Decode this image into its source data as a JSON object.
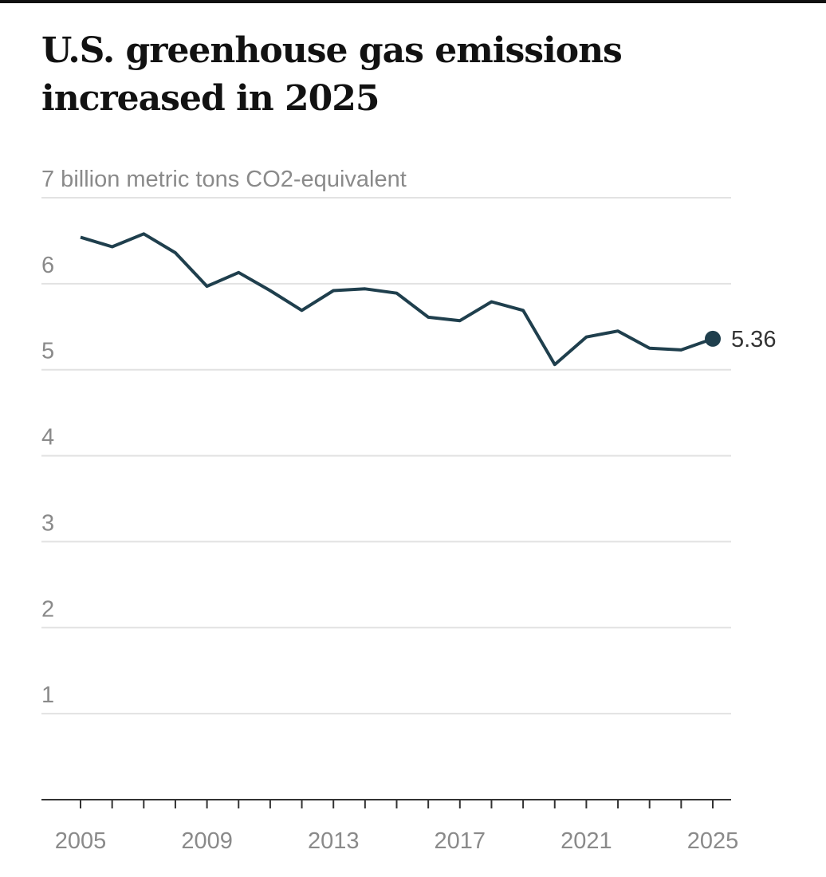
{
  "title": "U.S. greenhouse gas emissions increased in 2025",
  "chart_data": {
    "type": "line",
    "title": "U.S. greenhouse gas emissions increased in 2025",
    "ylabel": "billion metric tons CO2-equivalent",
    "top_tick_label": "7 billion metric tons CO2-equivalent",
    "ylim": [
      0,
      7
    ],
    "yticks": [
      1,
      2,
      3,
      4,
      5,
      6,
      7
    ],
    "xlim": [
      2005,
      2025
    ],
    "xtick_labels": [
      "2005",
      "2009",
      "2013",
      "2017",
      "2021",
      "2025"
    ],
    "grid": true,
    "line_color": "#1f3f4d",
    "x": [
      2005,
      2006,
      2007,
      2008,
      2009,
      2010,
      2011,
      2012,
      2013,
      2014,
      2015,
      2016,
      2017,
      2018,
      2019,
      2020,
      2021,
      2022,
      2023,
      2024,
      2025
    ],
    "values": [
      6.54,
      6.43,
      6.58,
      6.36,
      5.97,
      6.13,
      5.92,
      5.69,
      5.92,
      5.94,
      5.89,
      5.61,
      5.57,
      5.79,
      5.69,
      5.06,
      5.38,
      5.45,
      5.25,
      5.23,
      5.36
    ],
    "end_label": "5.36"
  }
}
